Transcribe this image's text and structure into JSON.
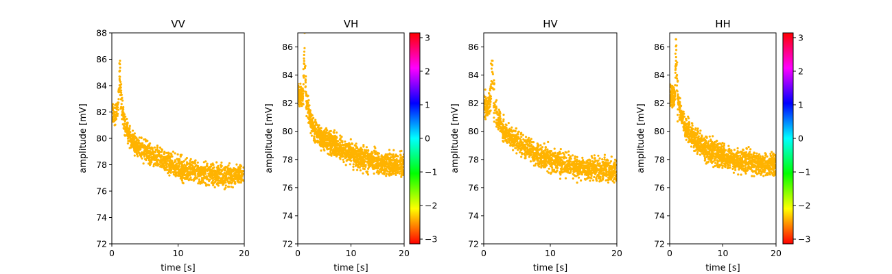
{
  "chart_data": [
    {
      "type": "scatter",
      "title": "VV",
      "xlabel": "time [s]",
      "ylabel": "amplitude [mV]",
      "xlim": [
        0,
        20
      ],
      "ylim": [
        72,
        88
      ],
      "xticks": [
        0,
        10,
        20
      ],
      "yticks": [
        72,
        74,
        76,
        78,
        80,
        82,
        84,
        86,
        88
      ],
      "point_color": "#ffb300",
      "trend": {
        "x": [
          0,
          0.5,
          1.0,
          1.2,
          1.4,
          2,
          3,
          4,
          5,
          7,
          9,
          11,
          13,
          15,
          17,
          20
        ],
        "y": [
          82.0,
          81.8,
          82.3,
          85.5,
          82.5,
          81.0,
          79.8,
          79.3,
          79.0,
          78.5,
          78.0,
          77.6,
          77.4,
          77.3,
          77.2,
          77.2
        ]
      },
      "spread": 0.9,
      "colorbar": false
    },
    {
      "type": "scatter",
      "title": "VH",
      "xlabel": "time [s]",
      "ylabel": "amplitude [mV]",
      "xlim": [
        0,
        20
      ],
      "ylim": [
        72,
        87
      ],
      "xticks": [
        0,
        10,
        20
      ],
      "yticks": [
        72,
        74,
        76,
        78,
        80,
        82,
        84,
        86
      ],
      "point_color": "#ffb300",
      "trend": {
        "x": [
          0,
          0.5,
          1.0,
          1.3,
          1.5,
          2,
          3,
          5,
          7,
          9,
          11,
          13,
          15,
          17,
          20
        ],
        "y": [
          82.8,
          82.4,
          82.5,
          86.0,
          82.2,
          81.5,
          80.0,
          79.4,
          79.0,
          78.6,
          78.2,
          78.0,
          77.8,
          77.7,
          77.6
        ]
      },
      "spread": 0.9,
      "colorbar": true,
      "colorbar_range": [
        -3.14159,
        3.14159
      ],
      "colorbar_ticks": [
        -3,
        -2,
        -1,
        0,
        1,
        2,
        3
      ]
    },
    {
      "type": "scatter",
      "title": "HV",
      "xlabel": "time [s]",
      "ylabel": "amplitude [mV]",
      "xlim": [
        0,
        20
      ],
      "ylim": [
        72,
        87
      ],
      "xticks": [
        0,
        10,
        20
      ],
      "yticks": [
        72,
        74,
        76,
        78,
        80,
        82,
        84,
        86
      ],
      "point_color": "#ffb300",
      "trend": {
        "x": [
          0,
          0.5,
          1.0,
          1.2,
          1.5,
          2,
          3,
          5,
          7,
          9,
          11,
          13,
          15,
          17,
          20
        ],
        "y": [
          82.0,
          81.8,
          82.0,
          85.5,
          82.2,
          81.0,
          80.0,
          79.3,
          78.6,
          78.2,
          77.8,
          77.6,
          77.4,
          77.3,
          77.2
        ]
      },
      "spread": 0.9,
      "colorbar": false
    },
    {
      "type": "scatter",
      "title": "HH",
      "xlabel": "time [s]",
      "ylabel": "amplitude [mV]",
      "xlim": [
        0,
        20
      ],
      "ylim": [
        72,
        87
      ],
      "xticks": [
        0,
        10,
        20
      ],
      "yticks": [
        72,
        74,
        76,
        78,
        80,
        82,
        84,
        86
      ],
      "point_color": "#ffb300",
      "trend": {
        "x": [
          0,
          0.5,
          1.0,
          1.2,
          1.5,
          2,
          3,
          5,
          7,
          9,
          11,
          13,
          15,
          17,
          20
        ],
        "y": [
          82.8,
          82.4,
          82.6,
          86.0,
          82.4,
          81.5,
          80.2,
          79.3,
          78.8,
          78.4,
          78.1,
          77.9,
          77.8,
          77.7,
          77.6
        ]
      },
      "spread": 0.9,
      "colorbar": true,
      "colorbar_range": [
        -3.14159,
        3.14159
      ],
      "colorbar_ticks": [
        -3,
        -2,
        -1,
        0,
        1,
        2,
        3
      ]
    }
  ]
}
